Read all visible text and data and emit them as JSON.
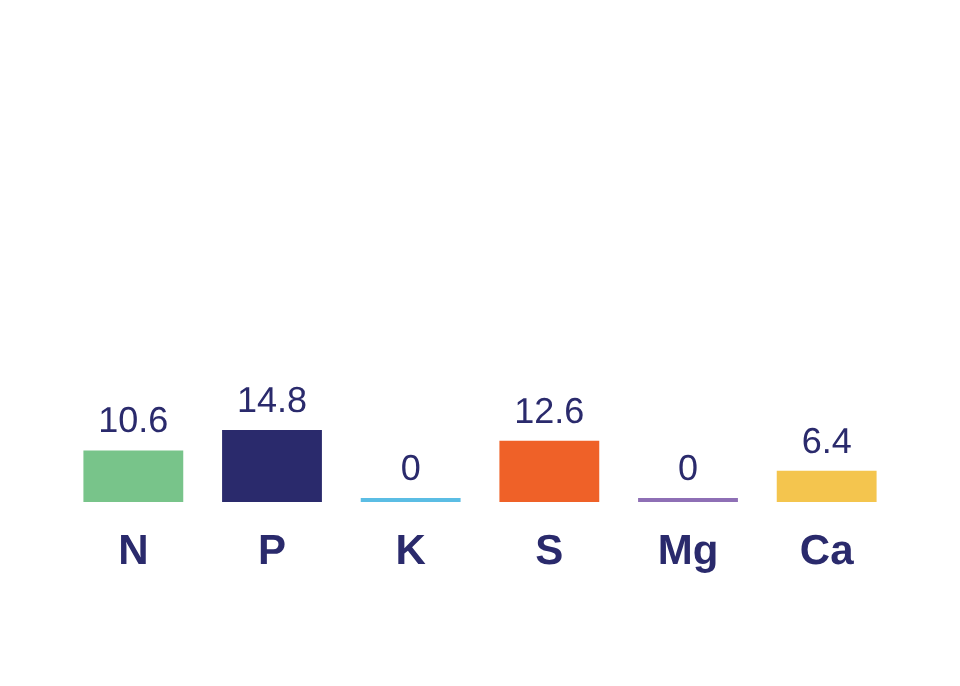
{
  "chart_data": {
    "type": "bar",
    "categories": [
      "N",
      "P",
      "K",
      "S",
      "Mg",
      "Ca"
    ],
    "values": [
      10.6,
      14.8,
      0,
      12.6,
      0,
      6.4
    ],
    "colors": [
      "#78c48a",
      "#2a2a6c",
      "#5bbde4",
      "#ef6128",
      "#8e6fb5",
      "#f4c54e"
    ],
    "data_labels": true
  }
}
